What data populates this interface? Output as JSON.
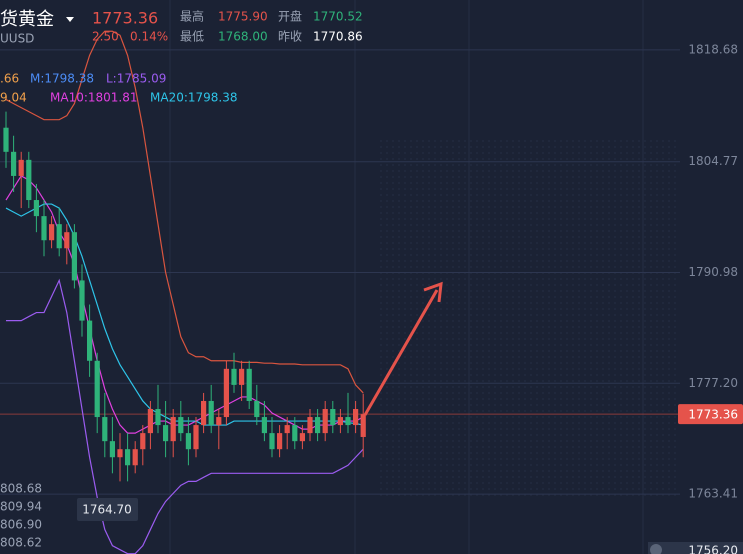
{
  "chart_data": {
    "type": "candlestick",
    "title": "货黄金",
    "price": "1773.36",
    "change": "2.50",
    "change_pct": "0.14%",
    "subtitle": "UUSD",
    "stats": [
      {
        "label": "最高",
        "value": "1775.90"
      },
      {
        "label": "开盘",
        "value": "1770.52"
      },
      {
        "label": "最低",
        "value": "1768.00"
      },
      {
        "label": "昨收",
        "value": "1770.86"
      }
    ],
    "indicators_boll": [
      ".66",
      "M:1798.38",
      "L:1785.09"
    ],
    "indicators_ma": [
      "9.04",
      "MA10:1801.81",
      "MA20:1798.38"
    ],
    "left_labels": [
      "808.68",
      "809.94",
      "806.90",
      "808.62"
    ],
    "low_marker": {
      "value": 1764.7,
      "label": "1764.70"
    },
    "last_price": {
      "value": 1773.36,
      "label": "1773.36"
    },
    "bottom_label": "1756.20",
    "ylim": [
      1755.96,
      1824.89
    ],
    "yticks": [
      1818.68,
      1804.77,
      1790.98,
      {
        "value": 1777.2,
        "label": "1777.20"
      },
      1763.41
    ],
    "up_color": "#e5534b",
    "down_color": "#2fb37a",
    "open": [
      1809,
      1806,
      1803,
      1805,
      1800,
      1798,
      1795,
      1797,
      1794,
      1796,
      1790,
      1785,
      1780,
      1773,
      1770,
      1768,
      1769,
      1767,
      1769,
      1771,
      1774,
      1772,
      1770,
      1773,
      1771,
      1769,
      1772,
      1775,
      1772,
      1773,
      1779,
      1777,
      1779,
      1775,
      1773,
      1771,
      1769,
      1771,
      1772,
      1770,
      1771,
      1773,
      1771,
      1774,
      1772,
      1773,
      1772,
      1770.52
    ],
    "high": [
      1811,
      1808,
      1806,
      1806,
      1802,
      1800,
      1798,
      1799,
      1797,
      1797,
      1792,
      1787,
      1781,
      1776,
      1773,
      1771,
      1771,
      1770,
      1772,
      1775,
      1777,
      1775,
      1774,
      1775,
      1773,
      1773,
      1776,
      1777,
      1774,
      1780,
      1781,
      1780,
      1780,
      1777,
      1775,
      1773,
      1772,
      1773,
      1773,
      1772,
      1774,
      1774,
      1775,
      1775,
      1774,
      1776,
      1775,
      1775.9
    ],
    "low": [
      1804,
      1801,
      1799,
      1799,
      1796,
      1793,
      1794,
      1793,
      1792,
      1789,
      1783,
      1778,
      1771,
      1768,
      1766,
      1765,
      1765,
      1766,
      1767,
      1769,
      1771,
      1768,
      1768,
      1770,
      1767,
      1768,
      1771,
      1771,
      1769,
      1772,
      1776,
      1775,
      1774,
      1772,
      1770,
      1768,
      1768,
      1769,
      1769,
      1769,
      1770,
      1770,
      1770,
      1771,
      1771,
      1771,
      1771,
      1768
    ],
    "close": [
      1806,
      1803,
      1805,
      1800,
      1798,
      1795,
      1797,
      1794,
      1796,
      1790,
      1785,
      1780,
      1773,
      1770,
      1768,
      1769,
      1767,
      1769,
      1771,
      1774,
      1772,
      1770,
      1773,
      1771,
      1769,
      1772,
      1775,
      1772,
      1773,
      1779,
      1777,
      1779,
      1775,
      1773,
      1771,
      1769,
      1771,
      1772,
      1770,
      1771,
      1773,
      1771,
      1774,
      1772,
      1773,
      1772,
      1774,
      1773.36
    ],
    "series": [
      {
        "name": "BOLL UP",
        "color": "#d9553f",
        "values": [
          1812.5,
          1812,
          1811.5,
          1811,
          1810.5,
          1810,
          1810,
          1810,
          1810.5,
          1812,
          1815,
          1818,
          1820,
          1821,
          1821,
          1820.5,
          1818,
          1814,
          1809,
          1803,
          1797,
          1791,
          1787,
          1783,
          1781,
          1780.5,
          1780.5,
          1780,
          1780,
          1780,
          1780,
          1779.8,
          1779.8,
          1779.8,
          1779.7,
          1779.7,
          1779.6,
          1779.6,
          1779.6,
          1779.5,
          1779.5,
          1779.5,
          1779.5,
          1779.5,
          1779.5,
          1779,
          1777,
          1776
        ]
      },
      {
        "name": "BOLL LOW",
        "color": "#9b5cf0",
        "values": [
          1785,
          1785,
          1785,
          1785.5,
          1786,
          1786,
          1788,
          1790,
          1786,
          1780,
          1774,
          1768,
          1763,
          1759,
          1757,
          1756.5,
          1756,
          1756,
          1757,
          1759,
          1761,
          1762.5,
          1763.5,
          1764.5,
          1765,
          1765,
          1765.5,
          1766,
          1766,
          1766,
          1766,
          1766,
          1766,
          1766,
          1766,
          1766,
          1766,
          1766,
          1766,
          1766,
          1766,
          1766,
          1766,
          1766,
          1766.5,
          1767,
          1768,
          1769
        ]
      },
      {
        "name": "MA10",
        "color": "#e040e0",
        "values": [
          1800,
          1801.5,
          1803,
          1802.5,
          1801.5,
          1800,
          1798.5,
          1796,
          1794.5,
          1792,
          1788,
          1784,
          1780,
          1776.5,
          1774,
          1772,
          1771,
          1771,
          1771.5,
          1772,
          1772.5,
          1772.5,
          1772,
          1772,
          1772,
          1772.5,
          1773,
          1773.5,
          1774,
          1774.5,
          1775,
          1775.5,
          1775.5,
          1775,
          1774.5,
          1773.5,
          1773,
          1772.5,
          1772,
          1771.5,
          1771.5,
          1772,
          1772,
          1772,
          1772.5,
          1772.5,
          1772.5,
          1773
        ]
      },
      {
        "name": "MA20",
        "color": "#2ec4e8",
        "values": [
          1799,
          1798.5,
          1798,
          1798.5,
          1799,
          1799.5,
          1799.5,
          1799,
          1797.5,
          1795.5,
          1793,
          1790,
          1787,
          1784,
          1781.5,
          1779.5,
          1778,
          1776.5,
          1775,
          1774,
          1773.5,
          1773,
          1772.5,
          1772.5,
          1772.5,
          1772.5,
          1772,
          1772,
          1772,
          1772,
          1772.5,
          1772.5,
          1772.5,
          1772.5,
          1772.5,
          1772.5,
          1772.5,
          1772.5,
          1772.5,
          1772.5,
          1772.5,
          1772.5,
          1772.5,
          1772.5,
          1772.5,
          1772.3,
          1772.2,
          1772
        ]
      }
    ]
  }
}
